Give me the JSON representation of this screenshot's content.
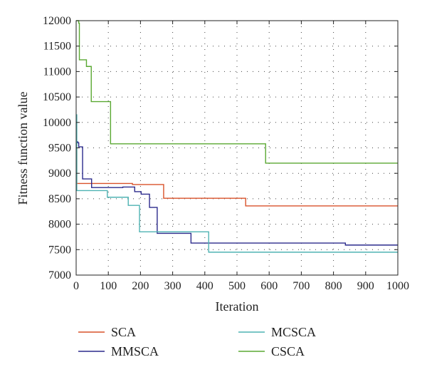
{
  "chart_data": {
    "type": "line",
    "title": "",
    "xlabel": "Iteration",
    "ylabel": "Fitness function value",
    "xlim": [
      0,
      1000
    ],
    "ylim": [
      7000,
      12000
    ],
    "xticks": [
      0,
      100,
      200,
      300,
      400,
      500,
      600,
      700,
      800,
      900,
      1000
    ],
    "yticks": [
      7000,
      7500,
      8000,
      8500,
      9000,
      9500,
      10000,
      10500,
      11000,
      11500,
      12000
    ],
    "grid": "dotted",
    "legend_position": "bottom",
    "series": [
      {
        "name": "SCA",
        "color": "#d9522a",
        "points": [
          [
            0,
            9500
          ],
          [
            2,
            8800
          ],
          [
            170,
            8800
          ],
          [
            175,
            8780
          ],
          [
            270,
            8780
          ],
          [
            272,
            8510
          ],
          [
            525,
            8510
          ],
          [
            527,
            8360
          ],
          [
            1000,
            8360
          ]
        ]
      },
      {
        "name": "MMSCA",
        "color": "#2b2a8c",
        "points": [
          [
            0,
            9620
          ],
          [
            5,
            9600
          ],
          [
            8,
            9520
          ],
          [
            18,
            9520
          ],
          [
            20,
            8890
          ],
          [
            45,
            8890
          ],
          [
            48,
            8720
          ],
          [
            140,
            8720
          ],
          [
            145,
            8730
          ],
          [
            180,
            8730
          ],
          [
            182,
            8640
          ],
          [
            200,
            8640
          ],
          [
            202,
            8590
          ],
          [
            225,
            8590
          ],
          [
            228,
            8330
          ],
          [
            250,
            8330
          ],
          [
            252,
            7820
          ],
          [
            355,
            7820
          ],
          [
            357,
            7630
          ],
          [
            835,
            7630
          ],
          [
            837,
            7590
          ],
          [
            1000,
            7590
          ]
        ]
      },
      {
        "name": "MCSCA",
        "color": "#4fb3b3",
        "points": [
          [
            0,
            10150
          ],
          [
            2,
            8660
          ],
          [
            95,
            8660
          ],
          [
            97,
            8530
          ],
          [
            160,
            8530
          ],
          [
            162,
            8370
          ],
          [
            195,
            8370
          ],
          [
            197,
            7850
          ],
          [
            410,
            7850
          ],
          [
            412,
            7450
          ],
          [
            1000,
            7450
          ]
        ]
      },
      {
        "name": "CSCA",
        "color": "#5aa832",
        "points": [
          [
            0,
            12000
          ],
          [
            8,
            11950
          ],
          [
            10,
            11230
          ],
          [
            30,
            11230
          ],
          [
            32,
            11100
          ],
          [
            45,
            11100
          ],
          [
            47,
            10410
          ],
          [
            105,
            10410
          ],
          [
            107,
            9580
          ],
          [
            587,
            9580
          ],
          [
            589,
            9200
          ],
          [
            1000,
            9200
          ]
        ]
      }
    ]
  }
}
